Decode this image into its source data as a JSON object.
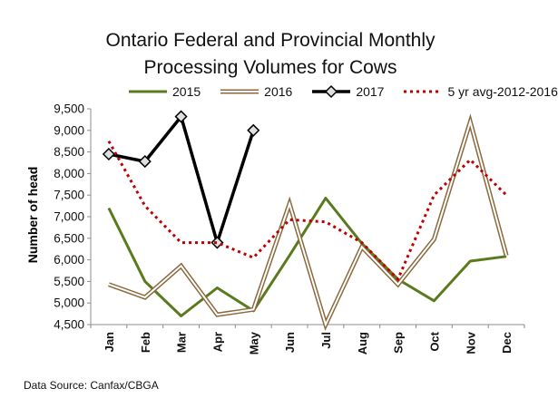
{
  "chart_data": {
    "type": "line",
    "title_line1": "Ontario Federal and Provincial Monthly",
    "title_line2": "Processing Volumes for Cows",
    "ylabel": "Number of head",
    "xlabel": "",
    "categories": [
      "Jan",
      "Feb",
      "Mar",
      "Apr",
      "May",
      "Jun",
      "Jul",
      "Aug",
      "Sep",
      "Oct",
      "Nov",
      "Dec"
    ],
    "ylim": [
      4500,
      9500
    ],
    "yticks": [
      4500,
      5000,
      5500,
      6000,
      6500,
      7000,
      7500,
      8000,
      8500,
      9000,
      9500
    ],
    "ytick_labels": [
      "4,500",
      "5,000",
      "5,500",
      "6,000",
      "6,500",
      "7,000",
      "7,500",
      "8,000",
      "8,500",
      "9,000",
      "9,500"
    ],
    "grid": false,
    "legend_position": "top",
    "series": [
      {
        "name": "2015",
        "style": "solid",
        "color": "#5a7a1e",
        "values": [
          7200,
          5500,
          4700,
          5350,
          4820,
          6100,
          7430,
          6380,
          5550,
          5050,
          5970,
          6080
        ]
      },
      {
        "name": "2016",
        "style": "double",
        "color": "#8b6a3e",
        "values": [
          5430,
          5130,
          5860,
          4730,
          4850,
          7300,
          4500,
          6300,
          5430,
          6480,
          9200,
          6100
        ]
      },
      {
        "name": "2017",
        "style": "thick-diamond",
        "color": "#000000",
        "values": [
          8450,
          8280,
          9320,
          6400,
          9000,
          null,
          null,
          null,
          null,
          null,
          null,
          null
        ]
      },
      {
        "name": "5 yr avg-2012-2016",
        "style": "dotted",
        "color": "#c00000",
        "values": [
          8750,
          7250,
          6400,
          6400,
          6050,
          6930,
          6880,
          6400,
          5550,
          7500,
          8320,
          7500
        ]
      }
    ]
  },
  "source_text": "Data Source: Canfax/CBGA"
}
